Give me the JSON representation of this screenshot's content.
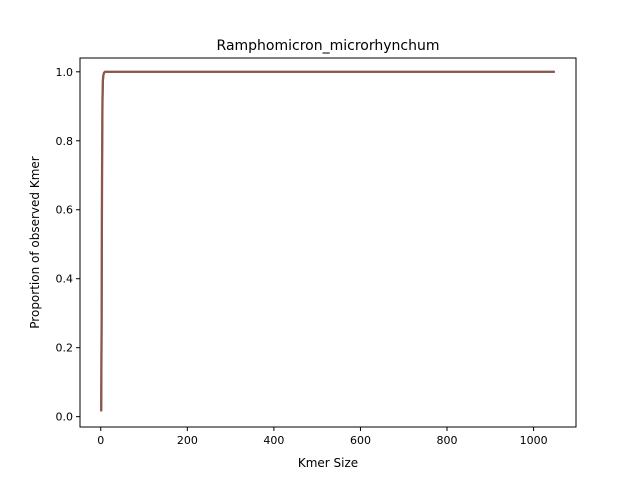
{
  "chart_data": {
    "type": "line",
    "title": "Ramphomicron_microrhynchum",
    "xlabel": "Kmer Size",
    "ylabel": "Proportion of observed Kmer",
    "xlim": [
      -48,
      1098
    ],
    "ylim": [
      -0.03,
      1.04
    ],
    "xticks": [
      0,
      200,
      400,
      600,
      800,
      1000
    ],
    "yticks": [
      0.0,
      0.2,
      0.4,
      0.6,
      0.8,
      1.0
    ],
    "xtick_labels": [
      "0",
      "200",
      "400",
      "600",
      "800",
      "1000"
    ],
    "ytick_labels": [
      "0.0",
      "0.2",
      "0.4",
      "0.6",
      "0.8",
      "1.0"
    ],
    "grid": false,
    "legend": "none",
    "series": [
      {
        "color": "#7f7f7f",
        "x": [
          1,
          2,
          3,
          4,
          5,
          6,
          7,
          8,
          9,
          10,
          12,
          15,
          20,
          50,
          100,
          1049
        ],
        "y": [
          0.02,
          0.3,
          0.75,
          0.93,
          0.98,
          0.99,
          0.995,
          0.998,
          0.999,
          1.0,
          1.0,
          1.0,
          1.0,
          1.0,
          1.0,
          1.0
        ]
      },
      {
        "color": "#8c564b",
        "x": [
          1,
          2,
          3,
          4,
          5,
          6,
          7,
          8,
          9,
          10,
          12,
          15,
          20,
          50,
          100,
          1049
        ],
        "y": [
          0.015,
          0.28,
          0.72,
          0.92,
          0.975,
          0.99,
          0.995,
          0.998,
          0.999,
          1.0,
          1.0,
          1.0,
          1.0,
          1.0,
          1.0,
          1.0
        ]
      }
    ]
  }
}
